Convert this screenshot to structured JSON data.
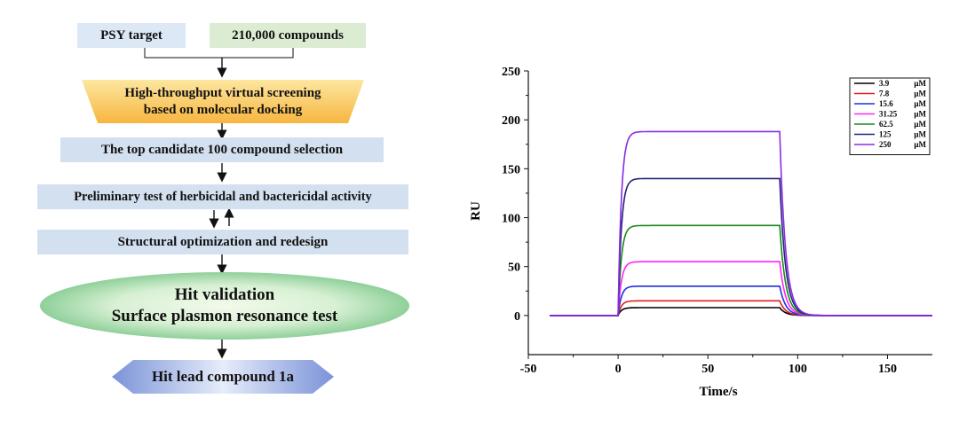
{
  "flowchart": {
    "psy_target": "PSY target",
    "compounds": "210,000 compounds",
    "hts_line1": "High-throughput virtual screening",
    "hts_line2": "based on molecular docking",
    "top_candidate": "The top candidate 100 compound selection",
    "preliminary_test": "Preliminary test of herbicidal and bactericidal activity",
    "structural_opt": "Structural optimization and redesign",
    "hit_validation_line1": "Hit validation",
    "hit_validation_line2": "Surface plasmon resonance test",
    "hit_lead": "Hit lead compound 1a",
    "colors": {
      "psy_box": "#dce8f6",
      "compounds_box": "#dcecd2",
      "hts_top": "#fde7a0",
      "hts_bottom": "#f7b640",
      "step_box": "#d3e0f0",
      "ellipse_center": "#eef8e4",
      "ellipse_edge": "#8fd09a",
      "hexagon_light": "#e6ecfa",
      "hexagon_dark": "#7b93d8"
    }
  },
  "chart_data": {
    "type": "line",
    "title": "",
    "xlabel": "Time/s",
    "ylabel": "RU",
    "xlim": [
      -50,
      175
    ],
    "ylim": [
      -40,
      250
    ],
    "xticks": [
      -50,
      0,
      50,
      100,
      150
    ],
    "yticks": [
      0,
      50,
      100,
      150,
      200,
      250
    ],
    "grid": false,
    "legend_position": "top-right",
    "injection_start": 0,
    "injection_end": 90,
    "series": [
      {
        "name": "3.9",
        "unit": "μM",
        "plateau": 8,
        "color": "#000000"
      },
      {
        "name": "7.8",
        "unit": "μM",
        "plateau": 15,
        "color": "#e02020"
      },
      {
        "name": "15.6",
        "unit": "μM",
        "plateau": 30,
        "color": "#1f2fe0"
      },
      {
        "name": "31.25",
        "unit": "μM",
        "plateau": 55,
        "color": "#ff22ff"
      },
      {
        "name": "62.5",
        "unit": "μM",
        "plateau": 92,
        "color": "#1a8a1a"
      },
      {
        "name": "125",
        "unit": "μM",
        "plateau": 140,
        "color": "#22227a"
      },
      {
        "name": "250",
        "unit": "μM",
        "plateau": 188,
        "color": "#8a2be2"
      }
    ]
  }
}
